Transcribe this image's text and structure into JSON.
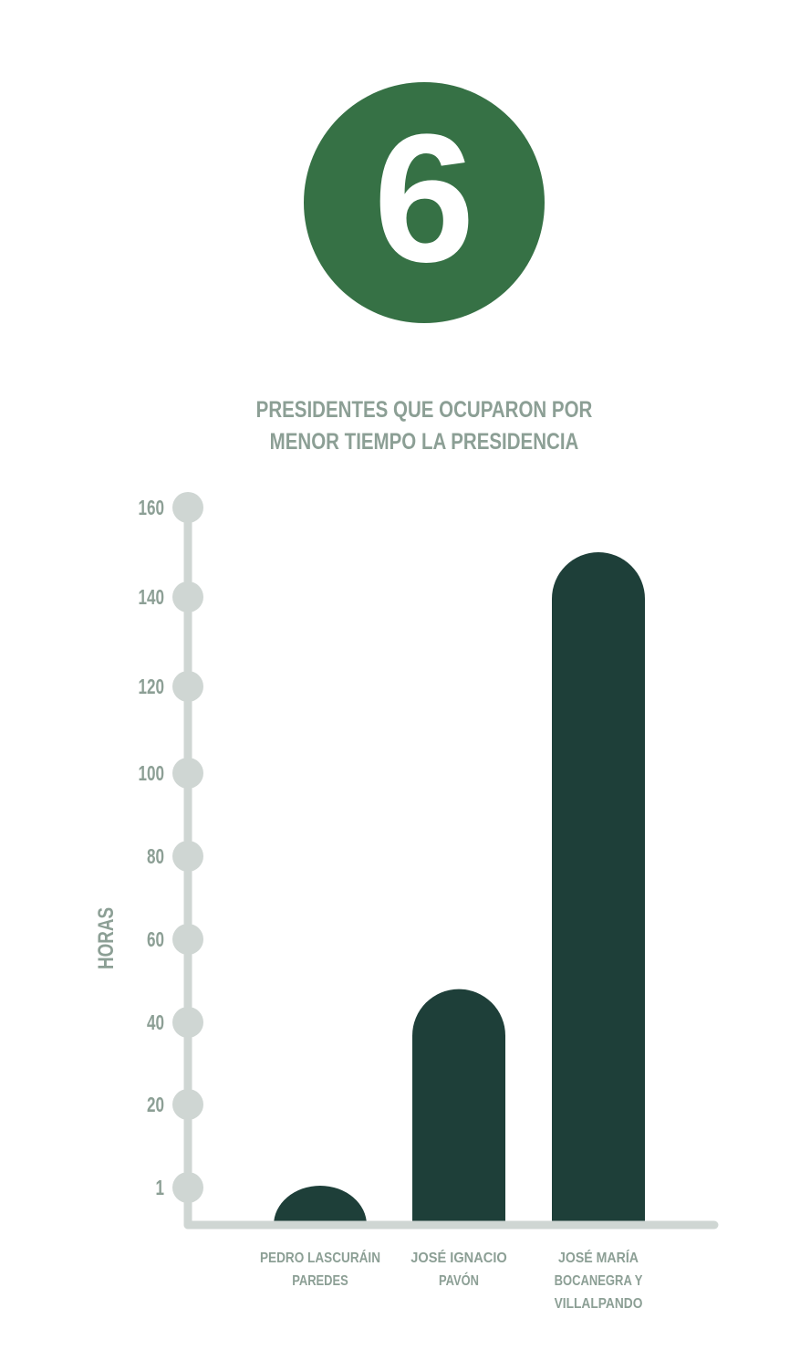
{
  "badge": {
    "number": "6"
  },
  "colors": {
    "badge": "#367145",
    "bars": "#1e3f39",
    "axis": "#cfd6d3",
    "text": "#8c9f95"
  },
  "chart_data": {
    "type": "bar",
    "title_lines": [
      "PRESIDENTES QUE OCUPARON POR",
      "MENOR TIEMPO LA PRESIDENCIA"
    ],
    "ylabel": "HORAS",
    "xlabel": "",
    "y_ticks": [
      "1",
      "20",
      "40",
      "60",
      "80",
      "100",
      "120",
      "140",
      "160"
    ],
    "categories": [
      [
        "PEDRO LASCURÁIN",
        "PAREDES"
      ],
      [
        "JOSÉ IGNACIO",
        "PAVÓN"
      ],
      [
        "JOSÉ MARÍA",
        "BOCANEGRA Y",
        "VILLALPANDO"
      ]
    ],
    "values": [
      1,
      48,
      150
    ],
    "grid": false,
    "legend": "none"
  }
}
